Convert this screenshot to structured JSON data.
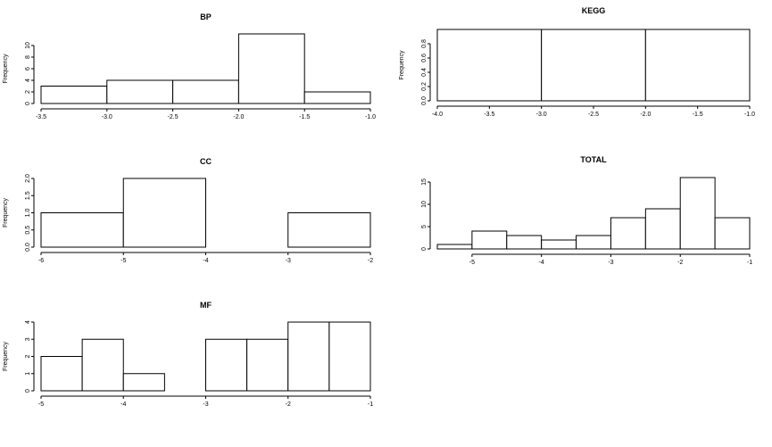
{
  "chart_data": [
    {
      "id": "bp",
      "type": "bar",
      "title": "BP",
      "xlabel": "",
      "ylabel": "Frequency",
      "xlim": [
        -3.5,
        -1.0
      ],
      "ylim": [
        0,
        12
      ],
      "xticks": [
        "-3.5",
        "-3.0",
        "-2.5",
        "-2.0",
        "-1.5",
        "-1.0"
      ],
      "yticks": [
        "0",
        "2",
        "4",
        "6",
        "8",
        "10"
      ],
      "bins": [
        [
          -3.5,
          -3.0
        ],
        [
          -3.0,
          -2.5
        ],
        [
          -2.5,
          -2.0
        ],
        [
          -2.0,
          -1.5
        ],
        [
          -1.5,
          -1.0
        ]
      ],
      "values": [
        3,
        4,
        4,
        12,
        2
      ]
    },
    {
      "id": "kegg",
      "type": "bar",
      "title": "KEGG",
      "xlabel": "",
      "ylabel": "Frequency",
      "xlim": [
        -4.0,
        -1.0
      ],
      "ylim": [
        0,
        1
      ],
      "xticks": [
        "-4.0",
        "-3.5",
        "-3.0",
        "-2.5",
        "-2.0",
        "-1.5",
        "-1.0"
      ],
      "yticks": [
        "0.0",
        "0.2",
        "0.4",
        "0.6",
        "0.8"
      ],
      "bins": [
        [
          -4.0,
          -3.0
        ],
        [
          -3.0,
          -2.0
        ],
        [
          -2.0,
          -1.0
        ]
      ],
      "values": [
        1,
        1,
        1
      ]
    },
    {
      "id": "cc",
      "type": "bar",
      "title": "CC",
      "xlabel": "",
      "ylabel": "Frequency",
      "xlim": [
        -6,
        -2
      ],
      "ylim": [
        0,
        2
      ],
      "xticks": [
        "-6",
        "-5",
        "-4",
        "-3",
        "-2"
      ],
      "yticks": [
        "0.0",
        "0.5",
        "1.0",
        "1.5",
        "2.0"
      ],
      "bins": [
        [
          -6,
          -5
        ],
        [
          -5,
          -4
        ],
        [
          -4,
          -3
        ],
        [
          -3,
          -2
        ]
      ],
      "values": [
        1,
        2,
        0,
        1
      ]
    },
    {
      "id": "total",
      "type": "bar",
      "title": "TOTAL",
      "xlabel": "",
      "ylabel": "",
      "xlim": [
        -5.5,
        -1
      ],
      "ylim": [
        0,
        16
      ],
      "xticks": [
        "-5",
        "-4",
        "-3",
        "-2",
        "-1"
      ],
      "xtick_values": [
        -5,
        -4,
        -3,
        -2,
        -1
      ],
      "yticks": [
        "0",
        "5",
        "10",
        "15"
      ],
      "bins": [
        [
          -5.5,
          -5.0
        ],
        [
          -5.0,
          -4.5
        ],
        [
          -4.5,
          -4.0
        ],
        [
          -4.0,
          -3.5
        ],
        [
          -3.5,
          -3.0
        ],
        [
          -3.0,
          -2.5
        ],
        [
          -2.5,
          -2.0
        ],
        [
          -2.0,
          -1.5
        ],
        [
          -1.5,
          -1.0
        ]
      ],
      "values": [
        1,
        4,
        3,
        2,
        3,
        7,
        9,
        16,
        7
      ]
    },
    {
      "id": "mf",
      "type": "bar",
      "title": "MF",
      "xlabel": "",
      "ylabel": "Frequency",
      "xlim": [
        -5,
        -1
      ],
      "ylim": [
        0,
        4
      ],
      "xticks": [
        "-5",
        "-4",
        "-3",
        "-2",
        "-1"
      ],
      "yticks": [
        "0",
        "1",
        "2",
        "3",
        "4"
      ],
      "bins": [
        [
          -5.0,
          -4.5
        ],
        [
          -4.5,
          -4.0
        ],
        [
          -4.0,
          -3.5
        ],
        [
          -3.5,
          -3.0
        ],
        [
          -3.0,
          -2.5
        ],
        [
          -2.5,
          -2.0
        ],
        [
          -2.0,
          -1.5
        ],
        [
          -1.5,
          -1.0
        ]
      ],
      "values": [
        2,
        3,
        1,
        0,
        3,
        3,
        4,
        4
      ]
    }
  ]
}
